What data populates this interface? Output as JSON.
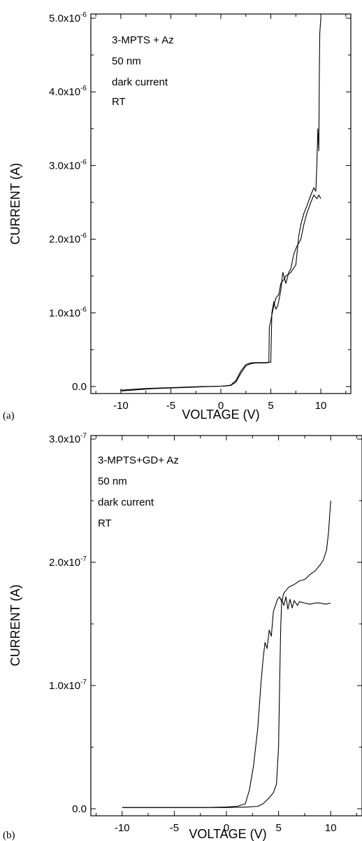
{
  "chart_data": [
    {
      "type": "line",
      "panel_label": "(a)",
      "xlabel": "VOLTAGE (V)",
      "ylabel": "CURRENT (A)",
      "xlim": [
        -13,
        13
      ],
      "ylim": [
        0,
        5e-06
      ],
      "xticks": [
        -10,
        -5,
        0,
        5,
        10
      ],
      "xtick_labels": [
        "-10",
        "-5",
        "0",
        "5",
        "10"
      ],
      "ytick_labels": [
        {
          "value": 0,
          "base": "0.0",
          "exp": ""
        },
        {
          "value": 1e-06,
          "base": "1.0x10",
          "exp": "-6"
        },
        {
          "value": 2e-06,
          "base": "2.0x10",
          "exp": "-6"
        },
        {
          "value": 3e-06,
          "base": "3.0x10",
          "exp": "-6"
        },
        {
          "value": 4e-06,
          "base": "4.0x10",
          "exp": "-6"
        },
        {
          "value": 5e-06,
          "base": "5.0x10",
          "exp": "-6"
        }
      ],
      "annotations": [
        "3-MPTS + Az",
        "50 nm",
        "dark current",
        "RT"
      ],
      "grid": false,
      "series": [
        {
          "x": [
            -10,
            -9,
            -8,
            -7,
            -6,
            -5,
            -4,
            -3,
            -2,
            -1,
            0,
            0.5,
            1.0,
            1.5,
            2.0,
            2.5,
            3.0,
            3.5,
            4.0,
            4.5,
            4.9,
            5.0,
            5.1,
            5.3,
            5.5,
            5.7,
            6.0,
            6.2,
            6.5,
            6.8,
            7.0,
            7.3,
            7.6,
            8.0,
            8.3,
            8.6,
            9.0,
            9.3,
            9.6,
            9.8,
            10.0
          ],
          "y": [
            -5e-08,
            -4e-08,
            -3e-08,
            -2.5e-08,
            -2e-08,
            -1.5e-08,
            -1e-08,
            -5e-09,
            0,
            2e-09,
            5e-09,
            8e-09,
            1.5e-08,
            6e-08,
            1.8e-07,
            2.8e-07,
            3.1e-07,
            3.2e-07,
            3.2e-07,
            3.2e-07,
            3.3e-07,
            3.3e-07,
            1e-06,
            1.15e-06,
            1.05e-06,
            1.1e-06,
            1.3e-06,
            1.55e-06,
            1.4e-06,
            1.55e-06,
            1.6e-06,
            1.8e-06,
            1.9e-06,
            2e-06,
            2.2e-06,
            2.35e-06,
            2.5e-06,
            2.6e-06,
            2.55e-06,
            2.6e-06,
            2.55e-06
          ]
        },
        {
          "x": [
            -10,
            -9,
            -8,
            -7,
            -6,
            -5,
            -4,
            -3,
            -2,
            -1,
            0,
            0.5,
            1.0,
            1.5,
            2.0,
            2.5,
            3.0,
            3.5,
            4.0,
            4.5,
            4.8,
            4.85,
            5.0,
            5.3,
            5.5,
            5.8,
            6.0,
            6.3,
            6.5,
            7.0,
            7.5,
            7.8,
            8.0,
            8.3,
            8.6,
            9.0,
            9.3,
            9.5,
            9.6,
            9.7,
            9.8,
            9.85,
            9.9,
            10.0
          ],
          "y": [
            -6e-08,
            -5e-08,
            -4e-08,
            -3e-08,
            -2.5e-08,
            -2e-08,
            -1.5e-08,
            -1e-08,
            -5e-09,
            0,
            5e-09,
            1e-08,
            2e-08,
            8e-08,
            2.1e-07,
            3e-07,
            3.2e-07,
            3.25e-07,
            3.25e-07,
            3.25e-07,
            3.3e-07,
            8e-07,
            9e-07,
            1.1e-06,
            1.2e-06,
            1.25e-06,
            1.4e-06,
            1.45e-06,
            1.5e-06,
            1.55e-06,
            1.65e-06,
            2.05e-06,
            2.2e-06,
            2.35e-06,
            2.45e-06,
            2.6e-06,
            2.7e-06,
            2.65e-06,
            3e-06,
            3.5e-06,
            3.2e-06,
            4.2e-06,
            4.8e-06,
            5e-06
          ]
        }
      ]
    },
    {
      "type": "line",
      "panel_label": "(b)",
      "xlabel": "VOLTAGE (V)",
      "ylabel": "CURRENT (A)",
      "xlim": [
        -13,
        13
      ],
      "ylim": [
        0,
        3e-07
      ],
      "xticks": [
        -10,
        -5,
        0,
        5,
        10
      ],
      "xtick_labels": [
        "-10",
        "-5",
        "0",
        "5",
        "10"
      ],
      "ytick_labels": [
        {
          "value": 0,
          "base": "0.0",
          "exp": ""
        },
        {
          "value": 1e-07,
          "base": "1.0x10",
          "exp": "-7"
        },
        {
          "value": 2e-07,
          "base": "2.0x10",
          "exp": "-7"
        },
        {
          "value": 3e-07,
          "base": "3.0x10",
          "exp": "-7"
        }
      ],
      "annotations": [
        "3-MPTS+GD+ Az",
        "50 nm",
        "dark current",
        "RT"
      ],
      "grid": false,
      "series": [
        {
          "x": [
            -10,
            -8,
            -6,
            -4,
            -2,
            0,
            1.0,
            1.8,
            2.2,
            2.6,
            3.0,
            3.3,
            3.5,
            3.7,
            3.9,
            4.1,
            4.3,
            4.5,
            4.7,
            4.9,
            5.1,
            5.3,
            5.5,
            5.8,
            6.0,
            6.5,
            7.0,
            7.5,
            8.0,
            8.5,
            9.0,
            9.3,
            9.6,
            9.8,
            10.0
          ],
          "y": [
            1e-09,
            1e-09,
            1e-09,
            1e-09,
            1e-09,
            1.5e-09,
            2e-09,
            4e-09,
            1.5e-08,
            3.5e-08,
            6.5e-08,
            1e-07,
            1.2e-07,
            1.35e-07,
            1.3e-07,
            1.45e-07,
            1.4e-07,
            1.6e-07,
            1.65e-07,
            1.7e-07,
            1.72e-07,
            1.68e-07,
            1.75e-07,
            1.78e-07,
            1.8e-07,
            1.82e-07,
            1.85e-07,
            1.86e-07,
            1.9e-07,
            1.93e-07,
            1.98e-07,
            2.02e-07,
            2.1e-07,
            2.25e-07,
            2.5e-07
          ]
        },
        {
          "x": [
            -10,
            -8,
            -6,
            -4,
            -2,
            0,
            2.0,
            3.0,
            3.5,
            4.0,
            4.5,
            4.8,
            5.0,
            5.1,
            5.2,
            5.3,
            5.5,
            5.7,
            5.9,
            6.1,
            6.3,
            6.5,
            6.8,
            7.0,
            7.5,
            8.0,
            8.5,
            9.0,
            9.5,
            10.0
          ],
          "y": [
            1e-09,
            1e-09,
            1e-09,
            1e-09,
            1e-09,
            1e-09,
            1.5e-09,
            2e-09,
            4e-09,
            8e-09,
            1.3e-08,
            2e-08,
            5e-08,
            1e-07,
            1.45e-07,
            1.7e-07,
            1.65e-07,
            1.72e-07,
            1.62e-07,
            1.7e-07,
            1.63e-07,
            1.69e-07,
            1.65e-07,
            1.68e-07,
            1.67e-07,
            1.66e-07,
            1.67e-07,
            1.67e-07,
            1.66e-07,
            1.67e-07
          ]
        }
      ]
    }
  ]
}
